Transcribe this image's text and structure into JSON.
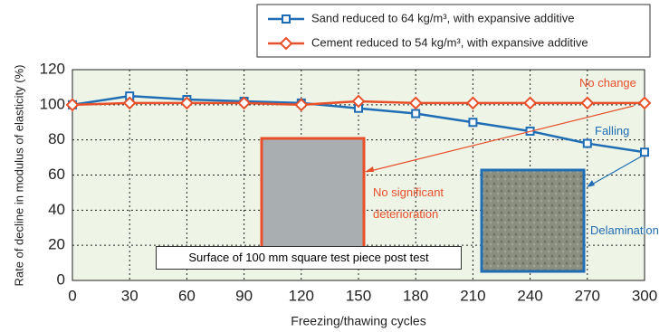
{
  "chart_data": {
    "type": "line",
    "x_label": "Freezing/thawing cycles",
    "y_label": "Rate of decline in modulus of elasticity (%)",
    "x": [
      0,
      30,
      60,
      90,
      120,
      150,
      180,
      210,
      240,
      270,
      300
    ],
    "series": [
      {
        "name": "Sand reduced to 64 kg/m³, with expansive additive",
        "color": "#1f6db5",
        "marker": "square",
        "values": [
          100,
          105,
          103,
          102,
          101,
          98,
          95,
          90,
          85,
          78,
          73
        ]
      },
      {
        "name": "Cement reduced to 54 kg/m³, with expansive additive",
        "color": "#e8502a",
        "marker": "diamond",
        "values": [
          100,
          101,
          101,
          101,
          100,
          102,
          101,
          101,
          101,
          101,
          101
        ]
      }
    ],
    "xlim": [
      0,
      300
    ],
    "xticks": [
      0,
      30,
      60,
      90,
      120,
      150,
      180,
      210,
      240,
      270,
      300
    ],
    "ylim": [
      0,
      120
    ],
    "yticks": [
      0,
      20,
      40,
      60,
      80,
      100,
      120
    ],
    "grid": true,
    "legend": "top-right",
    "annotations": [
      "No change",
      "Falling",
      "No significant deterioration",
      "Delamination",
      "Surface of 100 mm square test piece post test"
    ]
  }
}
